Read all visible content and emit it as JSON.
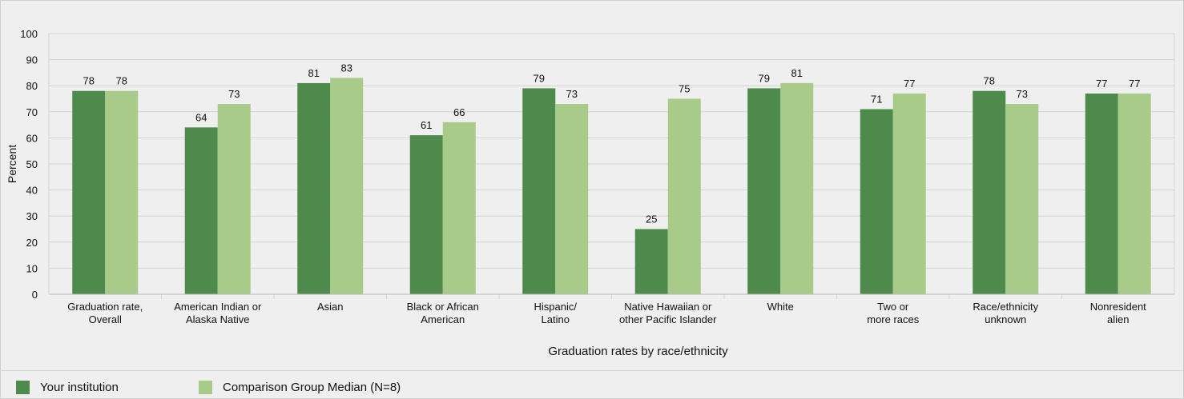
{
  "chart_data": {
    "type": "bar",
    "xlabel": "Graduation rates by race/ethnicity",
    "ylabel": "Percent",
    "ylim": [
      0,
      100
    ],
    "yticks": [
      0,
      10,
      20,
      30,
      40,
      50,
      60,
      70,
      80,
      90,
      100
    ],
    "grid": true,
    "legend_position": "bottom",
    "categories": [
      [
        "Graduation rate,",
        "Overall"
      ],
      [
        "American Indian or",
        "Alaska Native"
      ],
      [
        "Asian"
      ],
      [
        "Black or African",
        "American"
      ],
      [
        "Hispanic/",
        "Latino"
      ],
      [
        "Native Hawaiian or",
        "other Pacific Islander"
      ],
      [
        "White"
      ],
      [
        "Two or",
        "more races"
      ],
      [
        "Race/ethnicity",
        "unknown"
      ],
      [
        "Nonresident",
        "alien"
      ]
    ],
    "series": [
      {
        "name": "Your institution",
        "color": "#4e8a4c",
        "values": [
          78,
          64,
          81,
          61,
          79,
          25,
          79,
          71,
          78,
          77
        ]
      },
      {
        "name": "Comparison Group Median (N=8)",
        "color": "#a9cb8a",
        "values": [
          78,
          73,
          83,
          66,
          73,
          75,
          81,
          77,
          73,
          77
        ]
      }
    ]
  }
}
